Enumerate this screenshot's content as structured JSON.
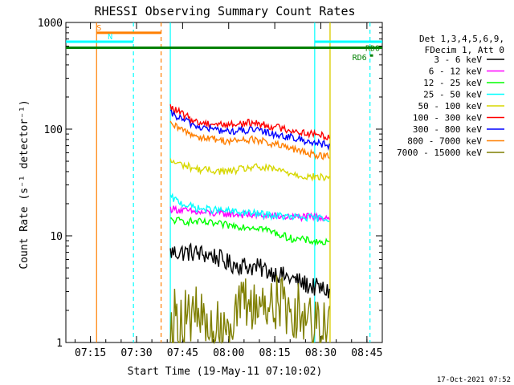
{
  "chart_data": {
    "type": "line",
    "title": "RHESSI Observing Summary Count Rates",
    "xlabel": "Start Time (19-May-11 07:10:02)",
    "ylabel": "Count Rate (s⁻¹ detector⁻¹)",
    "y_scale": "log",
    "ylim": [
      1,
      1000
    ],
    "xlim": [
      "07:07",
      "08:50"
    ],
    "x_ticks": [
      "07:15",
      "07:30",
      "07:45",
      "08:00",
      "08:15",
      "08:30",
      "08:45"
    ],
    "y_ticks": [
      "1",
      "10",
      "100",
      "1000"
    ],
    "legend_position": "top-right",
    "legend_header": [
      "Det 1,3,4,5,6,9,",
      "FDecim 1, Att 0"
    ],
    "series": [
      {
        "name": "3 - 6 keV",
        "color": "#000000",
        "x": [
          "07:41",
          "07:48",
          "07:55",
          "08:00",
          "08:10",
          "08:20",
          "08:25",
          "08:33"
        ],
        "y": [
          7,
          7,
          6.5,
          5.5,
          5,
          4,
          3.5,
          3
        ]
      },
      {
        "name": "6 - 12 keV",
        "color": "#ff00ff",
        "x": [
          "07:41",
          "07:50",
          "08:00",
          "08:10",
          "08:20",
          "08:33"
        ],
        "y": [
          18,
          16.5,
          16,
          15.5,
          15,
          15
        ]
      },
      {
        "name": "12 - 25 keV",
        "color": "#00ff00",
        "x": [
          "07:41",
          "07:50",
          "08:00",
          "08:10",
          "08:20",
          "08:33"
        ],
        "y": [
          14,
          13.5,
          12.5,
          12,
          9.5,
          8.5
        ]
      },
      {
        "name": "25 - 50 keV",
        "color": "#00ffff",
        "x": [
          "07:41",
          "07:45",
          "07:50",
          "08:00",
          "08:10",
          "08:20",
          "08:33"
        ],
        "y": [
          23,
          20,
          18,
          17,
          16,
          15,
          14.5
        ]
      },
      {
        "name": "50 - 100 keV",
        "color": "#d7d700",
        "x": [
          "07:41",
          "07:50",
          "08:00",
          "08:08",
          "08:15",
          "08:25",
          "08:33"
        ],
        "y": [
          50,
          42,
          40,
          44,
          42,
          36,
          35
        ]
      },
      {
        "name": "100 - 300 keV",
        "color": "#ff0000",
        "x": [
          "07:41",
          "07:50",
          "08:00",
          "08:08",
          "08:15",
          "08:25",
          "08:33"
        ],
        "y": [
          160,
          115,
          110,
          115,
          105,
          92,
          85
        ]
      },
      {
        "name": "300 - 800 keV",
        "color": "#0000ff",
        "x": [
          "07:41",
          "07:50",
          "08:00",
          "08:08",
          "08:15",
          "08:25",
          "08:33"
        ],
        "y": [
          140,
          105,
          95,
          98,
          90,
          78,
          70
        ]
      },
      {
        "name": "800 - 7000 keV",
        "color": "#ff7f00",
        "x": [
          "07:41",
          "07:50",
          "08:00",
          "08:08",
          "08:15",
          "08:25",
          "08:33"
        ],
        "y": [
          110,
          85,
          77,
          80,
          72,
          60,
          55
        ]
      },
      {
        "name": "7000 - 15000 keV",
        "color": "#7f7f00",
        "x": [
          "07:41",
          "07:50",
          "07:55",
          "08:05",
          "08:15",
          "08:25",
          "08:33"
        ],
        "y": [
          1.7,
          1.8,
          1.2,
          2.2,
          2.4,
          1.8,
          1.5
        ]
      }
    ],
    "flags": [
      {
        "label": "S",
        "color": "#ff7f00",
        "start": "07:17",
        "end": "07:38",
        "y": 800
      },
      {
        "label": "N",
        "color": "#00ffff",
        "start": "07:07",
        "end": "07:29",
        "y": 660
      },
      {
        "label": "",
        "color": "#00ffff",
        "start": "08:28",
        "end": "08:50",
        "y": 660
      },
      {
        "label": "RDO",
        "color": "#008000",
        "start": "07:07",
        "end": "08:50",
        "y": 580
      },
      {
        "label": "RD6",
        "color": "#008000",
        "start": "08:46",
        "end": "08:47",
        "y": 490
      }
    ],
    "vertical_lines": [
      {
        "x": "07:17",
        "color": "#ff7f00",
        "style": "solid"
      },
      {
        "x": "07:29",
        "color": "#00ffff",
        "style": "dashed"
      },
      {
        "x": "07:38",
        "color": "#ff7f00",
        "style": "dashed"
      },
      {
        "x": "07:41",
        "color": "#00ffff",
        "style": "solid"
      },
      {
        "x": "08:28",
        "color": "#00ffff",
        "style": "solid"
      },
      {
        "x": "08:33",
        "color": "#ff7f00",
        "style": "solid"
      },
      {
        "x": "08:33",
        "color": "#d7d700",
        "style": "solid"
      },
      {
        "x": "08:46",
        "color": "#00ffff",
        "style": "dashed"
      }
    ],
    "timestamp": "17-Oct-2021 07:52"
  }
}
